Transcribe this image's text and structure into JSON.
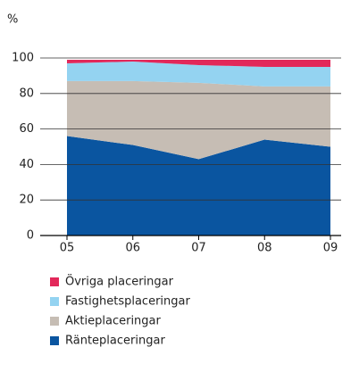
{
  "chart_data": {
    "type": "stacked_area",
    "y_label": "%",
    "categories": [
      "05",
      "06",
      "07",
      "08",
      "09"
    ],
    "series": [
      {
        "name": "Ränteplaceringar",
        "color": "#0a55a0",
        "values": [
          56,
          51,
          43,
          54,
          50
        ]
      },
      {
        "name": "Aktieplaceringar",
        "color": "#c6bdb4",
        "values": [
          31,
          36,
          43,
          30,
          34
        ]
      },
      {
        "name": "Fastighetsplaceringar",
        "color": "#94d3f1",
        "values": [
          10,
          11,
          10,
          11,
          11
        ]
      },
      {
        "name": "Övriga placeringar",
        "color": "#e2285a",
        "values": [
          2,
          1,
          3,
          4,
          4
        ]
      }
    ],
    "ylim": [
      0,
      100
    ],
    "yticks": [
      0,
      20,
      40,
      60,
      80,
      100
    ],
    "grid": true
  }
}
